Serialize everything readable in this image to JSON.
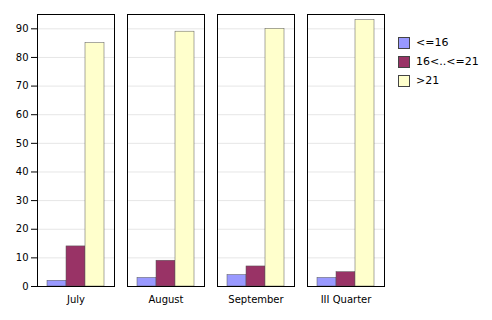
{
  "chart_data": {
    "type": "bar",
    "categories": [
      "July",
      "August",
      "September",
      "III Quarter"
    ],
    "series": [
      {
        "name": "<=16",
        "color": "#9999FF",
        "values": [
          2,
          3,
          4,
          3
        ]
      },
      {
        "name": "16<..<=21",
        "color": "#993366",
        "values": [
          14,
          9,
          7,
          5
        ]
      },
      {
        "name": ">21",
        "color": "#FFFFCC",
        "values": [
          85,
          89,
          90,
          93
        ]
      }
    ],
    "ylim": [
      0,
      95
    ],
    "yticks": [
      0,
      10,
      20,
      30,
      40,
      50,
      60,
      70,
      80,
      90
    ],
    "grid": true,
    "legend": "right"
  }
}
